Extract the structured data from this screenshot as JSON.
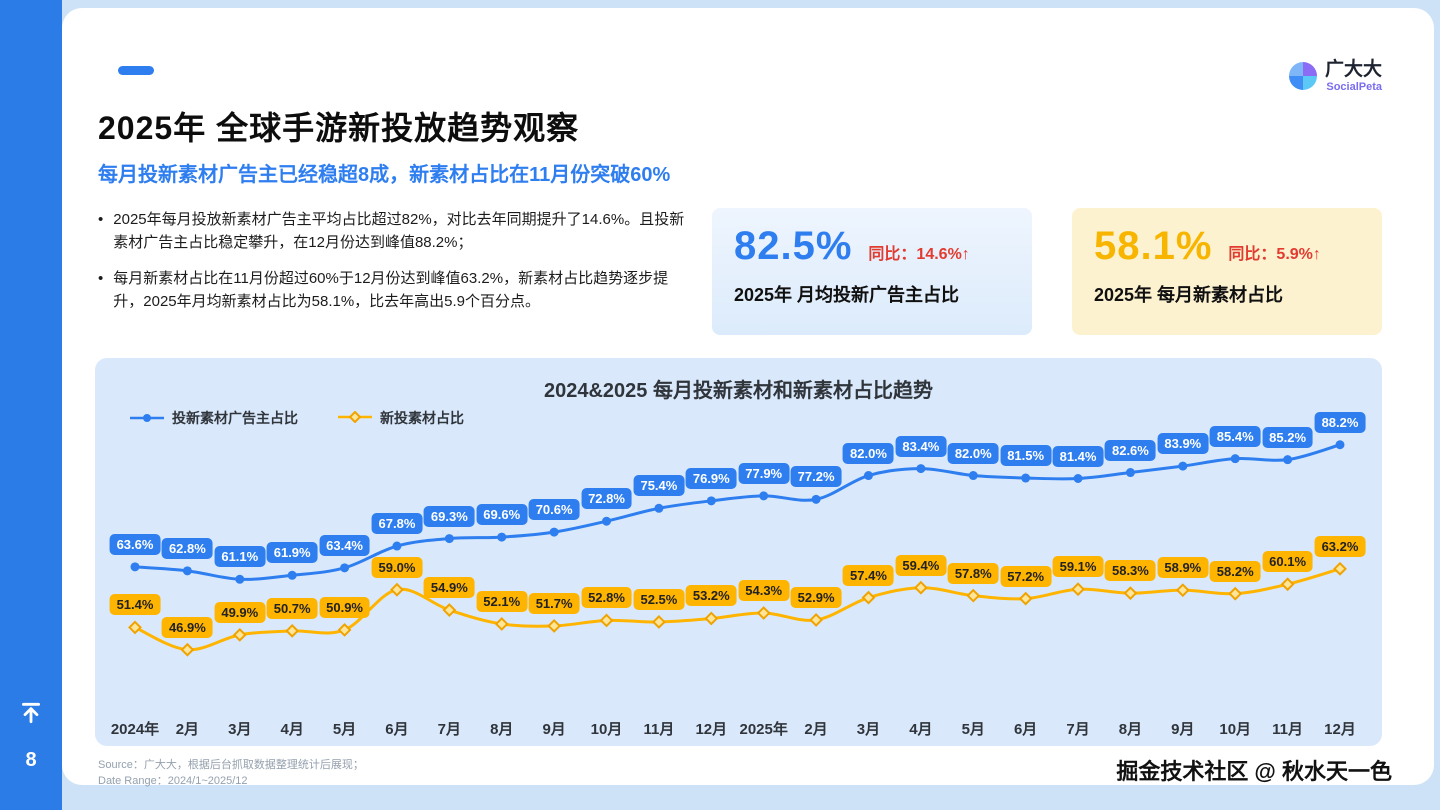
{
  "page": {
    "number": "8"
  },
  "header": {
    "title": "2025年 全球手游新投放趋势观察",
    "subtitle": "每月投新素材广告主已经稳超8成，新素材占比在11月份突破60%",
    "logo": {
      "name": "广大大",
      "sub": "SocialPeta"
    }
  },
  "bullets": [
    "2025年每月投放新素材广告主平均占比超过82%，对比去年同期提升了14.6%。且投新素材广告主占比稳定攀升，在12月份达到峰值88.2%；",
    "每月新素材占比在11月份超过60%于12月份达到峰值63.2%，新素材占比趋势逐步提升，2025年月均新素材占比为58.1%，比去年高出5.9个百分点。"
  ],
  "stat_cards": [
    {
      "value": "82.5%",
      "yoy": "同比：14.6%↑",
      "label": "2025年 月均投新广告主占比",
      "accent": "#2e7ef0"
    },
    {
      "value": "58.1%",
      "yoy": "同比：5.9%↑",
      "label": "2025年 每月新素材占比",
      "accent": "#f7b500"
    }
  ],
  "chart_data": {
    "type": "line",
    "title": "2024&2025 每月投新素材和新素材占比趋势",
    "categories": [
      "2024年",
      "2月",
      "3月",
      "4月",
      "5月",
      "6月",
      "7月",
      "8月",
      "9月",
      "10月",
      "11月",
      "12月",
      "2025年",
      "2月",
      "3月",
      "4月",
      "5月",
      "6月",
      "7月",
      "8月",
      "9月",
      "10月",
      "11月",
      "12月"
    ],
    "series": [
      {
        "name": "投新素材广告主占比",
        "color": "#2e7ef0",
        "marker": "circle",
        "values": [
          63.6,
          62.8,
          61.1,
          61.9,
          63.4,
          67.8,
          69.3,
          69.6,
          70.6,
          72.8,
          75.4,
          76.9,
          77.9,
          77.2,
          82.0,
          83.4,
          82.0,
          81.5,
          81.4,
          82.6,
          83.9,
          85.4,
          85.2,
          88.2
        ]
      },
      {
        "name": "新投素材占比",
        "color": "#ffb400",
        "marker": "diamond",
        "values": [
          51.4,
          46.9,
          49.9,
          50.7,
          50.9,
          59.0,
          54.9,
          52.1,
          51.7,
          52.8,
          52.5,
          53.2,
          54.3,
          52.9,
          57.4,
          59.4,
          57.8,
          57.2,
          59.1,
          58.3,
          58.9,
          58.2,
          60.1,
          63.2
        ]
      }
    ],
    "ylim": [
      40,
      95
    ],
    "grid": false,
    "legend_position": "top-left"
  },
  "footer": {
    "source": "Source：广大大，根据后台抓取数据整理统计后展现；",
    "date_range": "Date Range：2024/1~2025/12",
    "watermark": "掘金技术社区 @ 秋水天一色"
  }
}
